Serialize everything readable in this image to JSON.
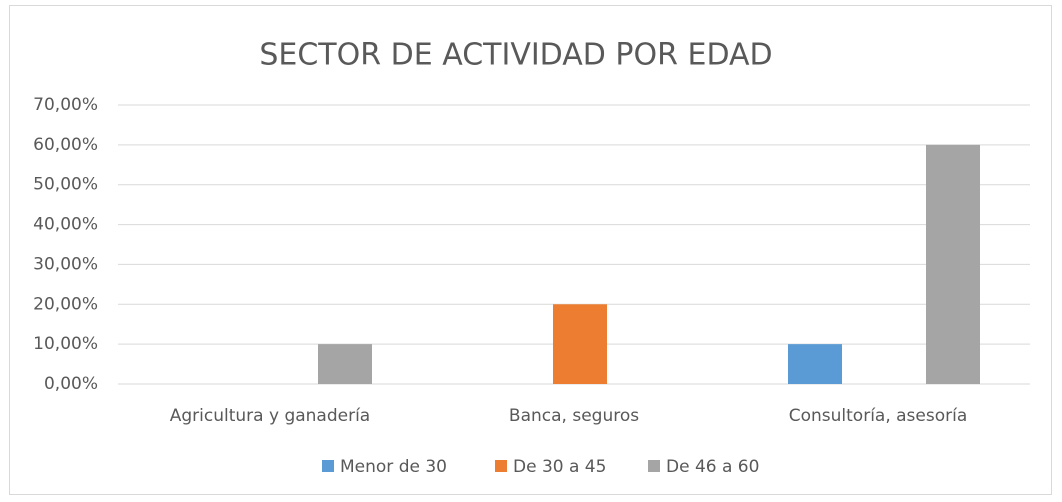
{
  "chart_data": {
    "type": "bar",
    "title": "SECTOR DE ACTIVIDAD POR EDAD",
    "categories": [
      "Agricultura y ganadería",
      "Banca, seguros",
      "Consultoría, asesoría"
    ],
    "series": [
      {
        "name": "Menor de 30",
        "color": "#5b9bd5",
        "values": [
          0,
          0,
          10
        ]
      },
      {
        "name": "De 30 a 45",
        "color": "#ed7d31",
        "values": [
          0,
          20,
          0
        ]
      },
      {
        "name": "De 46 a 60",
        "color": "#a5a5a5",
        "values": [
          10,
          0,
          60
        ]
      }
    ],
    "ylim": [
      0,
      70
    ],
    "yticks": [
      {
        "value": 0,
        "label": "0,00%"
      },
      {
        "value": 10,
        "label": "10,00%"
      },
      {
        "value": 20,
        "label": "20,00%"
      },
      {
        "value": 30,
        "label": "30,00%"
      },
      {
        "value": 40,
        "label": "40,00%"
      },
      {
        "value": 50,
        "label": "50,00%"
      },
      {
        "value": 60,
        "label": "60,00%"
      },
      {
        "value": 70,
        "label": "70,00%"
      }
    ],
    "grid": true,
    "legend": "bottom"
  }
}
